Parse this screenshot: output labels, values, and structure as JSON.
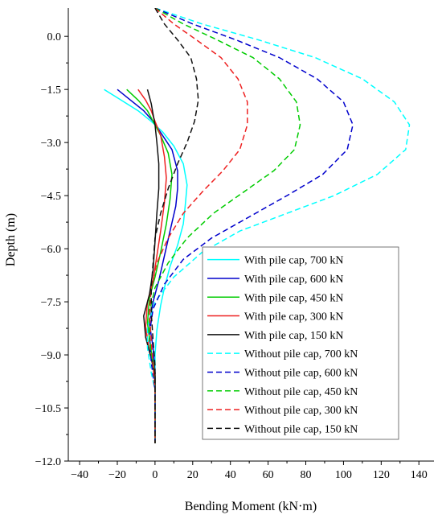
{
  "chart_data": {
    "type": "line",
    "xlabel": "Bending Moment (kN·m)",
    "ylabel": "Depth (m)",
    "xlim": [
      -46,
      148
    ],
    "ylim": [
      -12.0,
      0.8
    ],
    "x_ticks": [
      -40,
      -20,
      0,
      20,
      40,
      60,
      80,
      100,
      120,
      140
    ],
    "x_tick_labels": [
      "−40",
      "−20",
      "0",
      "20",
      "40",
      "60",
      "80",
      "100",
      "120",
      "140"
    ],
    "y_ticks": [
      0.0,
      -1.5,
      -3.0,
      -4.5,
      -6.0,
      -7.5,
      -9.0,
      -10.5,
      -12.0
    ],
    "y_tick_labels": [
      "0.0",
      "−1.5",
      "−3.0",
      "−4.5",
      "−6.0",
      "−7.5",
      "−9.0",
      "−10.5",
      "−12.0"
    ],
    "grid": false,
    "legend_position": "bottom-right",
    "series": [
      {
        "name": "With pile cap, 700 kN",
        "color": "#00ffff",
        "dash": "solid",
        "points": [
          [
            -27,
            -1.5
          ],
          [
            -18,
            -1.8
          ],
          [
            -9,
            -2.1
          ],
          [
            -2,
            -2.4
          ],
          [
            4,
            -2.7
          ],
          [
            10,
            -3.1
          ],
          [
            15,
            -3.6
          ],
          [
            17,
            -4.2
          ],
          [
            16,
            -4.8
          ],
          [
            15,
            -5.3
          ],
          [
            12,
            -5.9
          ],
          [
            8,
            -6.5
          ],
          [
            5,
            -7.1
          ],
          [
            3,
            -7.6
          ],
          [
            1,
            -8.3
          ],
          [
            0,
            -9.0
          ],
          [
            0,
            -10.0
          ],
          [
            0,
            -11.5
          ]
        ]
      },
      {
        "name": "With pile cap, 600 kN",
        "color": "#0000cc",
        "dash": "solid",
        "points": [
          [
            -20,
            -1.5
          ],
          [
            -13,
            -1.8
          ],
          [
            -6,
            -2.1
          ],
          [
            -1,
            -2.4
          ],
          [
            4,
            -2.8
          ],
          [
            9,
            -3.2
          ],
          [
            12,
            -3.8
          ],
          [
            12,
            -4.3
          ],
          [
            11,
            -4.8
          ],
          [
            8,
            -5.5
          ],
          [
            5,
            -6.2
          ],
          [
            2,
            -6.9
          ],
          [
            -1,
            -7.5
          ],
          [
            -3,
            -8.1
          ],
          [
            -1,
            -8.8
          ],
          [
            0,
            -9.5
          ],
          [
            0,
            -11.5
          ]
        ]
      },
      {
        "name": "With pile cap, 450 kN",
        "color": "#00cc00",
        "dash": "solid",
        "points": [
          [
            -15,
            -1.5
          ],
          [
            -9,
            -1.8
          ],
          [
            -4,
            -2.1
          ],
          [
            -1,
            -2.4
          ],
          [
            3,
            -2.8
          ],
          [
            7,
            -3.3
          ],
          [
            9,
            -3.9
          ],
          [
            8,
            -4.6
          ],
          [
            6,
            -5.3
          ],
          [
            3,
            -6.1
          ],
          [
            0,
            -6.8
          ],
          [
            -3,
            -7.4
          ],
          [
            -4,
            -8.1
          ],
          [
            -2,
            -8.9
          ],
          [
            0,
            -9.5
          ],
          [
            0,
            -11.5
          ]
        ]
      },
      {
        "name": "With pile cap, 300 kN",
        "color": "#ee2222",
        "dash": "solid",
        "points": [
          [
            -9,
            -1.5
          ],
          [
            -5,
            -1.8
          ],
          [
            -2,
            -2.1
          ],
          [
            0,
            -2.4
          ],
          [
            3,
            -2.8
          ],
          [
            5,
            -3.4
          ],
          [
            6,
            -4.0
          ],
          [
            5,
            -4.7
          ],
          [
            3,
            -5.5
          ],
          [
            1,
            -6.2
          ],
          [
            -1,
            -6.9
          ],
          [
            -4,
            -7.5
          ],
          [
            -5,
            -8.2
          ],
          [
            -3,
            -8.9
          ],
          [
            0,
            -9.5
          ],
          [
            0,
            -11.5
          ]
        ]
      },
      {
        "name": "With pile cap, 150 kN",
        "color": "#111111",
        "dash": "solid",
        "points": [
          [
            -4,
            -1.5
          ],
          [
            -2,
            -1.9
          ],
          [
            -1,
            -2.2
          ],
          [
            0,
            -2.5
          ],
          [
            1,
            -3.0
          ],
          [
            2,
            -3.6
          ],
          [
            2,
            -4.3
          ],
          [
            1,
            -5.0
          ],
          [
            0,
            -5.8
          ],
          [
            -1,
            -6.6
          ],
          [
            -3,
            -7.3
          ],
          [
            -6,
            -7.9
          ],
          [
            -5,
            -8.5
          ],
          [
            -2,
            -9.1
          ],
          [
            0,
            -9.6
          ],
          [
            0,
            -11.5
          ]
        ]
      },
      {
        "name": "Without pile cap, 700 kN",
        "color": "#00ffff",
        "dash": "dashed",
        "points": [
          [
            0,
            0.8
          ],
          [
            25,
            0.35
          ],
          [
            55,
            -0.1
          ],
          [
            85,
            -0.6
          ],
          [
            110,
            -1.2
          ],
          [
            127,
            -1.85
          ],
          [
            135,
            -2.5
          ],
          [
            133,
            -3.2
          ],
          [
            118,
            -3.9
          ],
          [
            95,
            -4.5
          ],
          [
            70,
            -5.0
          ],
          [
            45,
            -5.5
          ],
          [
            25,
            -6.1
          ],
          [
            10,
            -6.8
          ],
          [
            0,
            -7.5
          ],
          [
            -4,
            -8.2
          ],
          [
            -4,
            -8.8
          ],
          [
            -2,
            -9.5
          ],
          [
            0,
            -10.0
          ],
          [
            0,
            -11.5
          ]
        ]
      },
      {
        "name": "Without pile cap, 600 kN",
        "color": "#0000cc",
        "dash": "dashed",
        "points": [
          [
            0,
            0.8
          ],
          [
            20,
            0.35
          ],
          [
            43,
            -0.1
          ],
          [
            66,
            -0.6
          ],
          [
            86,
            -1.2
          ],
          [
            100,
            -1.85
          ],
          [
            105,
            -2.5
          ],
          [
            102,
            -3.2
          ],
          [
            89,
            -3.9
          ],
          [
            70,
            -4.5
          ],
          [
            50,
            -5.1
          ],
          [
            30,
            -5.7
          ],
          [
            15,
            -6.3
          ],
          [
            5,
            -7.0
          ],
          [
            -1,
            -7.7
          ],
          [
            -3,
            -8.4
          ],
          [
            -2,
            -9.2
          ],
          [
            0,
            -10.0
          ],
          [
            0,
            -11.5
          ]
        ]
      },
      {
        "name": "Without pile cap, 450 kN",
        "color": "#00cc00",
        "dash": "dashed",
        "points": [
          [
            0,
            0.8
          ],
          [
            15,
            0.35
          ],
          [
            33,
            -0.1
          ],
          [
            52,
            -0.6
          ],
          [
            66,
            -1.2
          ],
          [
            75,
            -1.85
          ],
          [
            77,
            -2.5
          ],
          [
            74,
            -3.2
          ],
          [
            63,
            -3.8
          ],
          [
            47,
            -4.4
          ],
          [
            31,
            -5.0
          ],
          [
            17,
            -5.7
          ],
          [
            7,
            -6.4
          ],
          [
            0,
            -7.1
          ],
          [
            -3,
            -7.8
          ],
          [
            -3,
            -8.6
          ],
          [
            -1,
            -9.3
          ],
          [
            0,
            -10.0
          ],
          [
            0,
            -11.5
          ]
        ]
      },
      {
        "name": "Without pile cap, 300 kN",
        "color": "#ee2222",
        "dash": "dashed",
        "points": [
          [
            0,
            0.8
          ],
          [
            10,
            0.35
          ],
          [
            22,
            -0.1
          ],
          [
            35,
            -0.6
          ],
          [
            44,
            -1.2
          ],
          [
            49,
            -1.85
          ],
          [
            49,
            -2.5
          ],
          [
            45,
            -3.2
          ],
          [
            36,
            -3.8
          ],
          [
            25,
            -4.4
          ],
          [
            15,
            -5.0
          ],
          [
            7,
            -5.7
          ],
          [
            1,
            -6.4
          ],
          [
            -2,
            -7.1
          ],
          [
            -3,
            -7.8
          ],
          [
            -2,
            -8.6
          ],
          [
            -1,
            -9.3
          ],
          [
            0,
            -10.0
          ],
          [
            0,
            -11.5
          ]
        ]
      },
      {
        "name": "Without pile cap, 150 kN",
        "color": "#111111",
        "dash": "dashed",
        "points": [
          [
            0,
            0.8
          ],
          [
            5,
            0.35
          ],
          [
            12,
            -0.1
          ],
          [
            19,
            -0.6
          ],
          [
            22,
            -1.2
          ],
          [
            23,
            -1.8
          ],
          [
            21,
            -2.4
          ],
          [
            17,
            -3.0
          ],
          [
            12,
            -3.6
          ],
          [
            7,
            -4.3
          ],
          [
            3,
            -5.0
          ],
          [
            0,
            -5.7
          ],
          [
            -1,
            -6.4
          ],
          [
            -2,
            -7.1
          ],
          [
            -2,
            -7.8
          ],
          [
            -1,
            -8.6
          ],
          [
            0,
            -9.3
          ],
          [
            0,
            -11.5
          ]
        ]
      }
    ]
  }
}
